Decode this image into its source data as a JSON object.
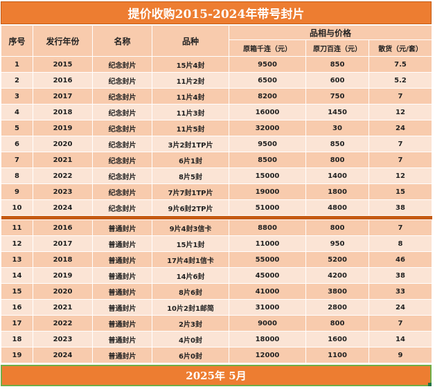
{
  "title": "提价收购2015-2024年带号封片",
  "headers": {
    "seq": "序号",
    "year": "发行年份",
    "name": "名称",
    "variety": "品种",
    "price_group": "品相与价格",
    "col_a": "原箱千连（元）",
    "col_b": "原刀百连（元）",
    "col_c": "散货（元/套）"
  },
  "rows_group1": [
    [
      "1",
      "2015",
      "纪念封片",
      "15片4封",
      "9500",
      "850",
      "7.5"
    ],
    [
      "2",
      "2016",
      "纪念封片",
      "11片2封",
      "6500",
      "600",
      "5.2"
    ],
    [
      "3",
      "2017",
      "纪念封片",
      "11片4封",
      "8200",
      "750",
      "7"
    ],
    [
      "4",
      "2018",
      "纪念封片",
      "11片3封",
      "16000",
      "1450",
      "12"
    ],
    [
      "5",
      "2019",
      "纪念封片",
      "11片5封",
      "32000",
      "30",
      "24"
    ],
    [
      "6",
      "2020",
      "纪念封片",
      "3片2封1TP片",
      "9500",
      "850",
      "7"
    ],
    [
      "7",
      "2021",
      "纪念封片",
      "6片1封",
      "8500",
      "800",
      "7"
    ],
    [
      "8",
      "2022",
      "纪念封片",
      "8片5封",
      "15000",
      "1400",
      "12"
    ],
    [
      "9",
      "2023",
      "纪念封片",
      "7片7封1TP片",
      "19000",
      "1800",
      "15"
    ],
    [
      "10",
      "2024",
      "纪念封片",
      "9片6封2TP片",
      "51000",
      "4800",
      "38"
    ]
  ],
  "rows_group2": [
    [
      "11",
      "2016",
      "普通封片",
      "9片4封3信卡",
      "8800",
      "800",
      "7"
    ],
    [
      "12",
      "2017",
      "普通封片",
      "15片1封",
      "11000",
      "950",
      "8"
    ],
    [
      "13",
      "2018",
      "普通封片",
      "17片4封1信卡",
      "55000",
      "5200",
      "46"
    ],
    [
      "14",
      "2019",
      "普通封片",
      "14片6封",
      "45000",
      "4200",
      "38"
    ],
    [
      "15",
      "2020",
      "普通封片",
      "8片6封",
      "41000",
      "3800",
      "33"
    ],
    [
      "16",
      "2021",
      "普通封片",
      "10片2封1邮简",
      "31000",
      "2800",
      "24"
    ],
    [
      "17",
      "2022",
      "普通封片",
      "2片3封",
      "9000",
      "800",
      "7"
    ],
    [
      "18",
      "2023",
      "普通封片",
      "4片0封",
      "18000",
      "1600",
      "14"
    ],
    [
      "19",
      "2024",
      "普通封片",
      "6片0封",
      "12000",
      "1100",
      "9"
    ]
  ],
  "footer": "2025年 5月"
}
